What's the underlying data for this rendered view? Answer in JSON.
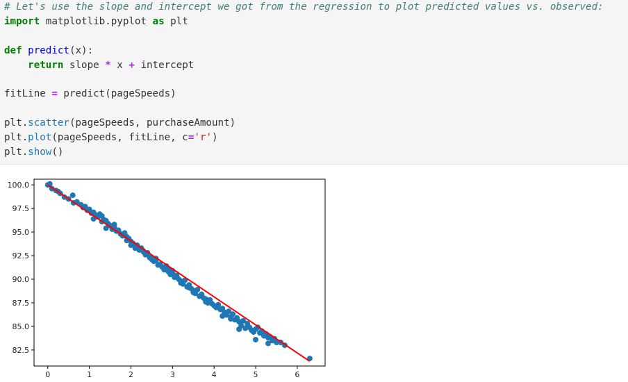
{
  "code": {
    "lines": [
      [
        {
          "t": "# Let's use the slope and intercept we got from the regression to plot predicted values vs. observed:",
          "c": "cm"
        }
      ],
      [
        {
          "t": "import",
          "c": "kw"
        },
        {
          "t": " matplotlib.pyplot "
        },
        {
          "t": "as",
          "c": "kw"
        },
        {
          "t": " plt"
        }
      ],
      [],
      [
        {
          "t": "def",
          "c": "kw"
        },
        {
          "t": " "
        },
        {
          "t": "predict",
          "c": "fn"
        },
        {
          "t": "(x):"
        }
      ],
      [
        {
          "t": "    "
        },
        {
          "t": "return",
          "c": "kw"
        },
        {
          "t": " slope "
        },
        {
          "t": "*",
          "c": "op"
        },
        {
          "t": " x "
        },
        {
          "t": "+",
          "c": "op"
        },
        {
          "t": " intercept"
        }
      ],
      [],
      [
        {
          "t": "fitLine "
        },
        {
          "t": "=",
          "c": "op"
        },
        {
          "t": " predict(pageSpeeds)"
        }
      ],
      [],
      [
        {
          "t": "plt."
        },
        {
          "t": "scatter",
          "c": "attr"
        },
        {
          "t": "(pageSpeeds, purchaseAmount)"
        }
      ],
      [
        {
          "t": "plt."
        },
        {
          "t": "plot",
          "c": "attr"
        },
        {
          "t": "(pageSpeeds, fitLine, c"
        },
        {
          "t": "=",
          "c": "op"
        },
        {
          "t": "'r'",
          "c": "str"
        },
        {
          "t": ")"
        }
      ],
      [
        {
          "t": "plt."
        },
        {
          "t": "show",
          "c": "attr"
        },
        {
          "t": "()"
        }
      ]
    ]
  },
  "chart_data": {
    "type": "scatter",
    "title": "",
    "xlabel": "",
    "ylabel": "",
    "xlim": [
      -0.33,
      6.67
    ],
    "ylim": [
      80.8,
      100.6
    ],
    "xticks": [
      0,
      1,
      2,
      3,
      4,
      5,
      6
    ],
    "yticks": [
      82.5,
      85.0,
      87.5,
      90.0,
      92.5,
      95.0,
      97.5,
      100.0
    ],
    "grid": false,
    "legend": "none",
    "colors": {
      "points": "#1f77b4",
      "fit": "#ff0000"
    },
    "fit_line": {
      "x": [
        0.0,
        6.3
      ],
      "y": [
        100.0,
        81.3
      ]
    },
    "scatter": {
      "x": [
        0.0,
        0.05,
        0.1,
        0.2,
        0.25,
        0.3,
        0.4,
        0.5,
        0.6,
        0.62,
        0.7,
        0.8,
        0.85,
        0.9,
        0.95,
        1.0,
        1.05,
        1.1,
        1.15,
        1.2,
        1.25,
        1.3,
        1.35,
        1.4,
        1.45,
        1.5,
        1.55,
        1.6,
        1.65,
        1.7,
        1.75,
        1.8,
        1.85,
        1.9,
        1.95,
        2.0,
        2.05,
        2.1,
        2.15,
        2.2,
        2.25,
        2.3,
        2.35,
        2.4,
        2.45,
        2.5,
        2.55,
        2.6,
        2.65,
        2.7,
        2.75,
        2.8,
        2.85,
        2.9,
        2.95,
        3.0,
        3.05,
        3.1,
        3.15,
        3.2,
        3.25,
        3.3,
        3.35,
        3.4,
        3.45,
        3.5,
        3.55,
        3.6,
        3.65,
        3.7,
        3.75,
        3.8,
        3.85,
        3.9,
        3.95,
        4.0,
        4.05,
        4.1,
        4.15,
        4.2,
        4.25,
        4.3,
        4.35,
        4.4,
        4.45,
        4.5,
        4.55,
        4.6,
        4.65,
        4.7,
        4.75,
        4.8,
        4.85,
        4.9,
        4.95,
        5.0,
        5.05,
        5.1,
        5.15,
        5.2,
        5.25,
        5.3,
        5.35,
        5.4,
        5.45,
        5.5,
        5.6,
        5.7,
        6.3,
        1.3,
        1.6,
        1.9,
        2.3,
        2.6,
        2.9,
        3.2,
        3.5,
        3.8,
        4.2,
        4.6,
        5.0,
        5.3,
        1.1,
        1.4,
        2.0,
        2.5,
        3.0,
        3.4,
        3.9,
        4.4,
        4.8,
        5.2
      ],
      "y": [
        100.0,
        100.1,
        99.6,
        99.4,
        99.3,
        99.1,
        98.7,
        98.5,
        98.9,
        98.1,
        98.2,
        97.9,
        97.6,
        97.7,
        97.3,
        97.4,
        97.0,
        97.1,
        96.8,
        96.6,
        96.9,
        96.1,
        96.3,
        96.2,
        95.9,
        95.7,
        95.3,
        95.5,
        95.1,
        95.2,
        94.8,
        94.6,
        94.9,
        94.1,
        94.3,
        94.0,
        93.8,
        93.3,
        93.6,
        93.1,
        93.3,
        92.9,
        92.6,
        92.8,
        92.3,
        92.1,
        91.9,
        92.2,
        91.5,
        91.6,
        91.3,
        91.0,
        91.4,
        90.8,
        90.5,
        90.9,
        90.2,
        90.4,
        90.0,
        89.8,
        89.5,
        89.9,
        89.2,
        89.4,
        89.0,
        88.8,
        88.5,
        88.9,
        88.2,
        88.4,
        88.0,
        87.9,
        87.5,
        87.8,
        87.4,
        87.2,
        87.0,
        87.3,
        86.8,
        86.9,
        86.5,
        86.2,
        86.6,
        86.0,
        86.3,
        85.7,
        85.9,
        85.5,
        85.1,
        85.6,
        84.8,
        85.0,
        84.9,
        84.6,
        84.4,
        84.7,
        84.9,
        84.3,
        84.5,
        84.0,
        84.2,
        83.8,
        83.9,
        83.5,
        83.7,
        83.3,
        83.3,
        83.0,
        81.6,
        96.7,
        95.8,
        94.5,
        93.0,
        92.0,
        91.1,
        89.6,
        88.6,
        87.6,
        86.1,
        84.7,
        83.6,
        83.2,
        96.4,
        95.4,
        93.6,
        92.2,
        90.7,
        89.1,
        87.8,
        85.8,
        85.3,
        84.1
      ]
    }
  }
}
